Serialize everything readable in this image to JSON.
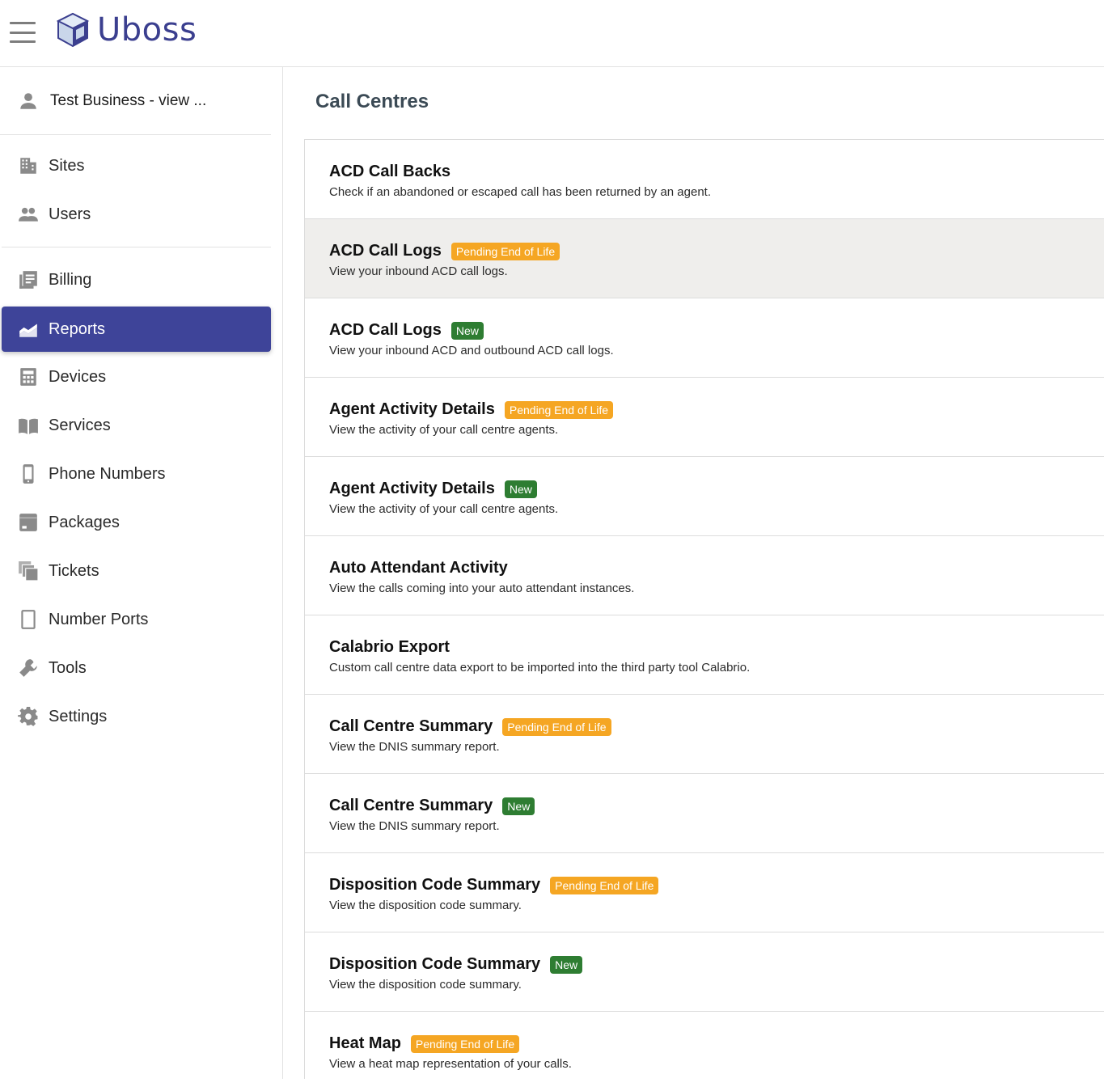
{
  "header": {
    "brand": "Uboss"
  },
  "sidebar": {
    "account": "Test Business - view ...",
    "items": [
      {
        "label": "Sites",
        "icon": "building-icon"
      },
      {
        "label": "Users",
        "icon": "group-icon"
      },
      {
        "label": "Billing",
        "icon": "billing-icon"
      },
      {
        "label": "Reports",
        "icon": "reports-chart-icon",
        "active": true
      },
      {
        "label": "Devices",
        "icon": "calculator-icon"
      },
      {
        "label": "Services",
        "icon": "book-icon"
      },
      {
        "label": "Phone Numbers",
        "icon": "phone-icon"
      },
      {
        "label": "Packages",
        "icon": "package-icon"
      },
      {
        "label": "Tickets",
        "icon": "tickets-icon"
      },
      {
        "label": "Number Ports",
        "icon": "tablet-icon"
      },
      {
        "label": "Tools",
        "icon": "wrench-icon"
      },
      {
        "label": "Settings",
        "icon": "gear-icon"
      }
    ]
  },
  "main": {
    "title": "Call Centres",
    "badges": {
      "eol": "Pending End of Life",
      "new": "New"
    },
    "reports": [
      {
        "title": "ACD Call Backs",
        "desc": "Check if an abandoned or escaped call has been returned by an agent.",
        "badge": ""
      },
      {
        "title": "ACD Call Logs",
        "desc": "View your inbound ACD call logs.",
        "badge": "Pending End of Life"
      },
      {
        "title": "ACD Call Logs",
        "desc": "View your inbound ACD and outbound ACD call logs.",
        "badge": "New"
      },
      {
        "title": "Agent Activity Details",
        "desc": "View the activity of your call centre agents.",
        "badge": "Pending End of Life"
      },
      {
        "title": "Agent Activity Details",
        "desc": "View the activity of your call centre agents.",
        "badge": "New"
      },
      {
        "title": "Auto Attendant Activity",
        "desc": "View the calls coming into your auto attendant instances.",
        "badge": ""
      },
      {
        "title": "Calabrio Export",
        "desc": "Custom call centre data export to be imported into the third party tool Calabrio.",
        "badge": ""
      },
      {
        "title": "Call Centre Summary",
        "desc": "View the DNIS summary report.",
        "badge": "Pending End of Life"
      },
      {
        "title": "Call Centre Summary",
        "desc": "View the DNIS summary report.",
        "badge": "New"
      },
      {
        "title": "Disposition Code Summary",
        "desc": "View the disposition code summary.",
        "badge": "Pending End of Life"
      },
      {
        "title": "Disposition Code Summary",
        "desc": "View the disposition code summary.",
        "badge": "New"
      },
      {
        "title": "Heat Map",
        "desc": "View a heat map representation of your calls.",
        "badge": "Pending End of Life"
      }
    ]
  },
  "colors": {
    "accent": "#3e4499",
    "eol_badge": "#f5a623",
    "new_badge": "#2e7d32",
    "hover_row": "#efeeec"
  }
}
